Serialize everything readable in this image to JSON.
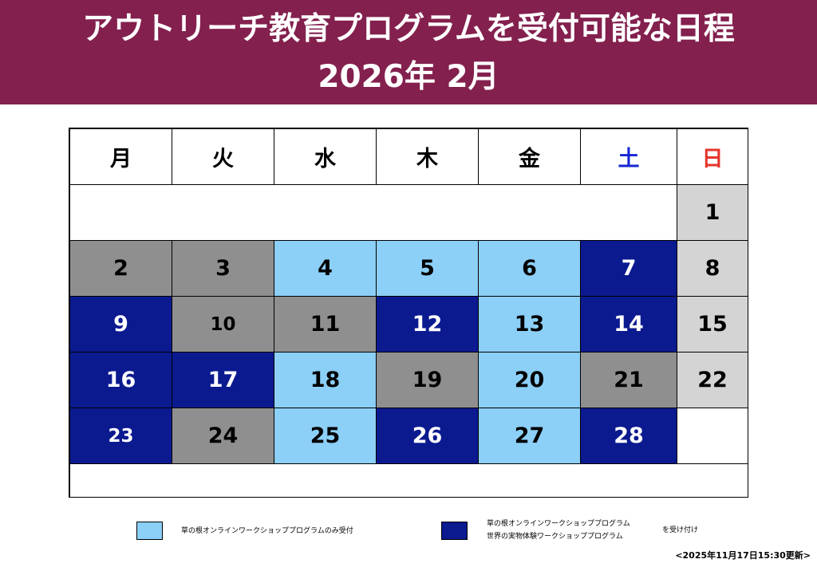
{
  "header": {
    "title": "アウトリーチ教育プログラムを受付可能な日程",
    "subtitle": "2026年 2月"
  },
  "calendar": {
    "weekdays": [
      "月",
      "火",
      "水",
      "木",
      "金",
      "土",
      "日"
    ],
    "weeks": [
      [
        "",
        "",
        "",
        "",
        "",
        "",
        "1"
      ],
      [
        "2",
        "3",
        "4",
        "5",
        "6",
        "7",
        "8"
      ],
      [
        "9",
        "10",
        "11",
        "12",
        "13",
        "14",
        "15"
      ],
      [
        "16",
        "17",
        "18",
        "19",
        "20",
        "21",
        "22"
      ],
      [
        "23",
        "24",
        "25",
        "26",
        "27",
        "28",
        ""
      ]
    ],
    "colors": {
      "saturday": "#1526d3",
      "sunday": "#e4352b",
      "unavailable": "#8f8f8f",
      "online_only": "#8ccff7",
      "both_programs": "#0b1a8f",
      "holiday_sunday": "#d4d4d4"
    }
  },
  "legend": {
    "online_only": "草の根オンラインワークショッププログラムのみ受付",
    "both_line1": "草の根オンラインワークショッププログラム",
    "both_line2": "世界の実物体験ワークショッププログラム",
    "both_suffix": "を受け付け"
  },
  "updated": "<2025年11月17日15:30更新>"
}
